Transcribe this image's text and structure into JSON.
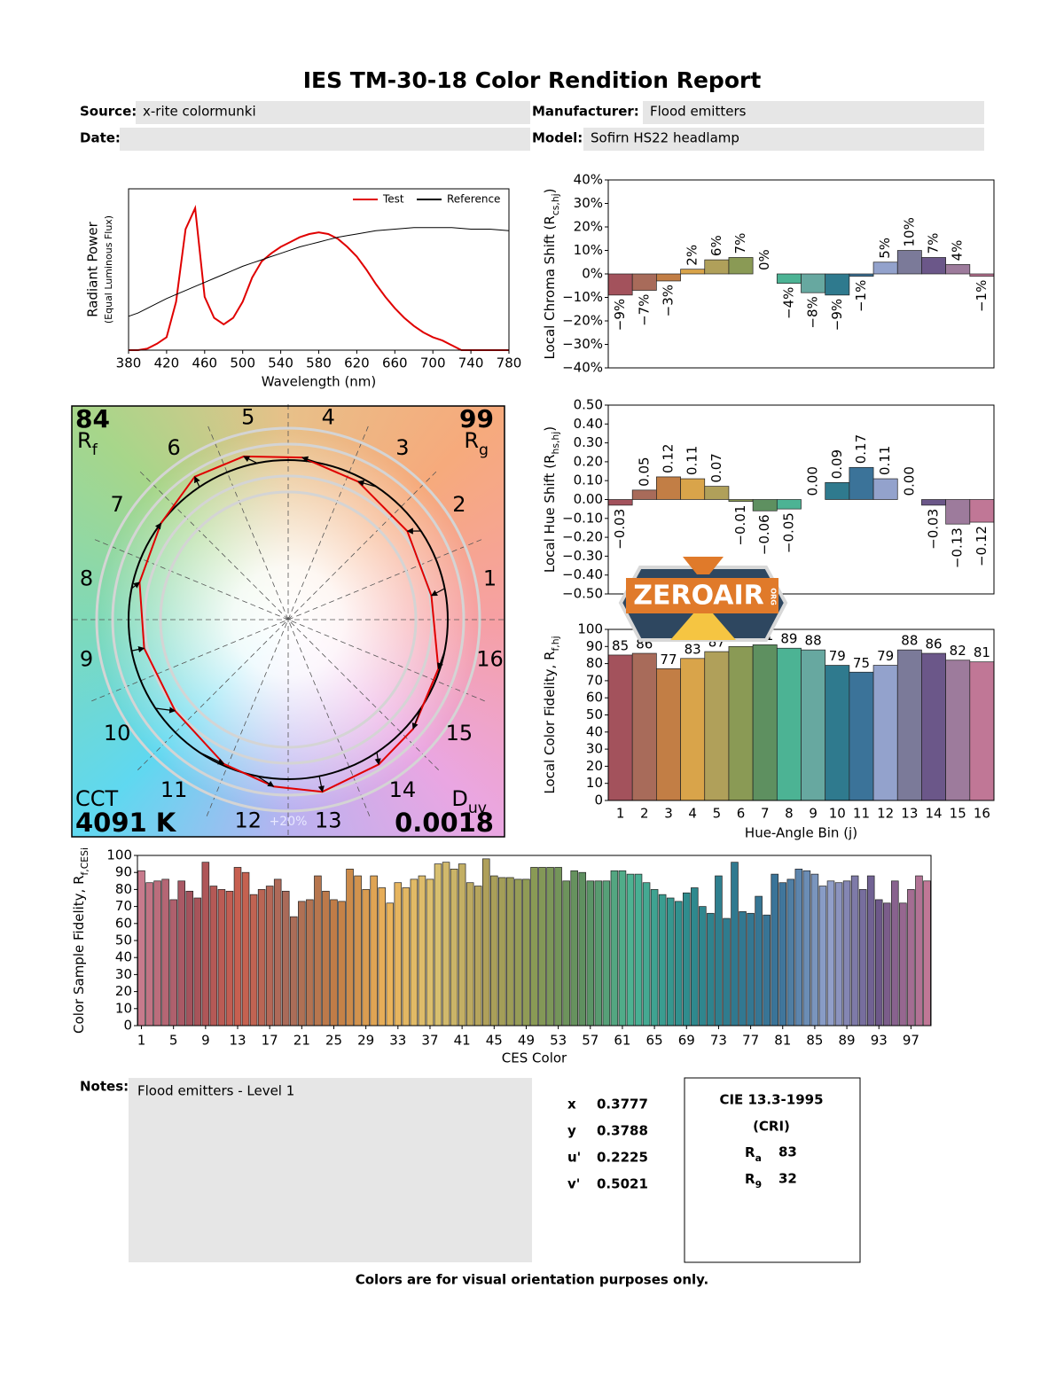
{
  "header": {
    "title": "IES TM-30-18 Color Rendition Report",
    "fields": [
      {
        "label": "Source:",
        "value": "x-rite colormunki"
      },
      {
        "label": "Manufacturer:",
        "value": "Flood emitters"
      },
      {
        "label": "Date:"
      },
      {
        "label": "Model:",
        "value": "Sofirn HS22 headlamp"
      }
    ]
  },
  "chart_data": [
    {
      "type": "line",
      "xlabel": "Wavelength (nm)",
      "ylabel": "Radiant Power",
      "ysublabel": "(Equal Luminous Flux)",
      "x": [
        380,
        390,
        400,
        410,
        420,
        430,
        440,
        450,
        460,
        470,
        480,
        490,
        500,
        510,
        520,
        530,
        540,
        550,
        560,
        570,
        580,
        590,
        600,
        610,
        620,
        630,
        640,
        650,
        660,
        670,
        680,
        690,
        700,
        710,
        720,
        730,
        740,
        750,
        760,
        770,
        780
      ],
      "series": [
        {
          "name": "Test",
          "color": "#e00000",
          "values": [
            0,
            0,
            0.01,
            0.04,
            0.08,
            0.3,
            0.75,
            0.88,
            0.33,
            0.2,
            0.16,
            0.2,
            0.3,
            0.45,
            0.55,
            0.6,
            0.64,
            0.67,
            0.7,
            0.72,
            0.73,
            0.72,
            0.69,
            0.64,
            0.58,
            0.5,
            0.41,
            0.33,
            0.26,
            0.2,
            0.15,
            0.11,
            0.08,
            0.06,
            0.03,
            0,
            0,
            0,
            0,
            0,
            0
          ]
        },
        {
          "name": "Reference",
          "color": "#000000",
          "values": [
            0.21,
            0.23,
            0.26,
            0.29,
            0.32,
            0.345,
            0.37,
            0.395,
            0.42,
            0.445,
            0.47,
            0.495,
            0.52,
            0.54,
            0.56,
            0.58,
            0.6,
            0.62,
            0.64,
            0.655,
            0.67,
            0.685,
            0.7,
            0.71,
            0.72,
            0.73,
            0.74,
            0.745,
            0.75,
            0.755,
            0.76,
            0.76,
            0.76,
            0.76,
            0.76,
            0.755,
            0.75,
            0.75,
            0.75,
            0.745,
            0.74
          ]
        }
      ],
      "xlim": [
        380,
        780
      ],
      "xticks": [
        380,
        420,
        460,
        500,
        540,
        580,
        620,
        660,
        700,
        740,
        780
      ],
      "ylim": [
        0,
        1
      ],
      "legend": "upper right"
    },
    {
      "type": "bar",
      "ylabel": {
        "text": "Local Chroma Shift (R",
        "sub": "cs,hj",
        "end": ")"
      },
      "values": [
        -9,
        -7,
        -3,
        2,
        6,
        7,
        0,
        -4,
        -8,
        -9,
        -1,
        5,
        10,
        7,
        4,
        -1
      ],
      "value_labels": [
        "−9%",
        "−7%",
        "−3%",
        "2%",
        "6%",
        "7%",
        "0%",
        "−4%",
        "−8%",
        "−9%",
        "−1%",
        "5%",
        "10%",
        "7%",
        "4%",
        "−1%"
      ],
      "colors": [
        "#a3525c",
        "#a86b5a",
        "#c27e45",
        "#d9a44a",
        "#b0a05a",
        "#8a9a55",
        "#5e9060",
        "#4cb394",
        "#67a8a0",
        "#2f7a8e",
        "#3b7399",
        "#93a2cc",
        "#7b7a99",
        "#6b5789",
        "#9d7b9c",
        "#c07796"
      ],
      "ylim": [
        -40,
        40
      ],
      "yticks": [
        {
          "value": -40,
          "label": "−40%"
        },
        {
          "value": -30,
          "label": "−30%"
        },
        {
          "value": -20,
          "label": "−20%"
        },
        {
          "value": -10,
          "label": "−10%"
        },
        {
          "value": 0,
          "label": "0%"
        },
        {
          "value": 10,
          "label": "10%"
        },
        {
          "value": 20,
          "label": "20%"
        },
        {
          "value": 30,
          "label": "30%"
        },
        {
          "value": 40,
          "label": "40%"
        }
      ]
    },
    {
      "type": "bar",
      "ylabel": {
        "text": "Local Hue Shift (R",
        "sub": "hs,hj",
        "end": ")"
      },
      "values": [
        -0.03,
        0.05,
        0.12,
        0.11,
        0.07,
        -0.01,
        -0.06,
        -0.05,
        0,
        0.09,
        0.17,
        0.11,
        0,
        -0.03,
        -0.13,
        -0.12
      ],
      "value_labels": [
        "−0.03",
        "0.05",
        "0.12",
        "0.11",
        "0.07",
        "−0.01",
        "−0.06",
        "−0.05",
        "0.00",
        "0.09",
        "0.17",
        "0.11",
        "0.00",
        "−0.03",
        "−0.13",
        "−0.12"
      ],
      "colors": [
        "#a3525c",
        "#a86b5a",
        "#c27e45",
        "#d9a44a",
        "#b0a05a",
        "#8a9a55",
        "#5e9060",
        "#4cb394",
        "#67a8a0",
        "#2f7a8e",
        "#3b7399",
        "#93a2cc",
        "#7b7a99",
        "#6b5789",
        "#9d7b9c",
        "#c07796"
      ],
      "ylim": [
        -0.5,
        0.5
      ],
      "yticks": [
        {
          "value": -0.5,
          "label": "−0.50"
        },
        {
          "value": -0.4,
          "label": "−0.40"
        },
        {
          "value": -0.3,
          "label": "−0.30"
        },
        {
          "value": -0.2,
          "label": "−0.20"
        },
        {
          "value": -0.1,
          "label": "−0.10"
        },
        {
          "value": 0,
          "label": "0.00"
        },
        {
          "value": 0.1,
          "label": "0.10"
        },
        {
          "value": 0.2,
          "label": "0.20"
        },
        {
          "value": 0.3,
          "label": "0.30"
        },
        {
          "value": 0.4,
          "label": "0.40"
        },
        {
          "value": 0.5,
          "label": "0.50"
        }
      ]
    },
    {
      "type": "bar",
      "ylabel": {
        "text": "Local Color Fidelity, R",
        "sub": "f,hj"
      },
      "xlabel": "Hue-Angle Bin (j)",
      "categories": [
        1,
        2,
        3,
        4,
        5,
        6,
        7,
        8,
        9,
        10,
        11,
        12,
        13,
        14,
        15,
        16
      ],
      "values": [
        85,
        86,
        77,
        83,
        87,
        90,
        91,
        89,
        88,
        79,
        75,
        79,
        88,
        86,
        82,
        81
      ],
      "colors": [
        "#a3525c",
        "#a86b5a",
        "#c27e45",
        "#d9a44a",
        "#b0a05a",
        "#8a9a55",
        "#5e9060",
        "#4cb394",
        "#67a8a0",
        "#2f7a8e",
        "#3b7399",
        "#93a2cc",
        "#7b7a99",
        "#6b5789",
        "#9d7b9c",
        "#c07796"
      ],
      "ylim": [
        0,
        100
      ],
      "yticks": [
        0,
        10,
        20,
        30,
        40,
        50,
        60,
        70,
        80,
        90,
        100
      ]
    },
    {
      "type": "vector",
      "rf": 84,
      "rf_label": {
        "text": "R",
        "sub": "f"
      },
      "rg": 99,
      "rg_label": {
        "text": "R",
        "sub": "g"
      },
      "cct_label": "CCT",
      "cct": {
        "value": 4091,
        "label": "4091 K"
      },
      "duv_label": {
        "text": "D",
        "sub": "uv"
      },
      "duv": 0.0018,
      "bins": [
        1,
        2,
        3,
        4,
        5,
        6,
        7,
        8,
        9,
        10,
        11,
        12,
        13,
        14,
        15,
        16
      ],
      "scale_label": "+20%",
      "test_color": "#e00000",
      "reference_color": "#000000"
    },
    {
      "type": "bar",
      "ylabel": {
        "text": "Color Sample Fidelity, R",
        "sub": "f,CESi"
      },
      "xlabel": "CES Color",
      "x": [
        1,
        2,
        3,
        4,
        5,
        6,
        7,
        8,
        9,
        10,
        11,
        12,
        13,
        14,
        15,
        16,
        17,
        18,
        19,
        20,
        21,
        22,
        23,
        24,
        25,
        26,
        27,
        28,
        29,
        30,
        31,
        32,
        33,
        34,
        35,
        36,
        37,
        38,
        39,
        40,
        41,
        42,
        43,
        44,
        45,
        46,
        47,
        48,
        49,
        50,
        51,
        52,
        53,
        54,
        55,
        56,
        57,
        58,
        59,
        60,
        61,
        62,
        63,
        64,
        65,
        66,
        67,
        68,
        69,
        70,
        71,
        72,
        73,
        74,
        75,
        76,
        77,
        78,
        79,
        80,
        81,
        82,
        83,
        84,
        85,
        86,
        87,
        88,
        89,
        90,
        91,
        92,
        93,
        94,
        95,
        96,
        97,
        98,
        99
      ],
      "values": [
        91,
        84,
        85,
        86,
        74,
        85,
        79,
        75,
        96,
        82,
        80,
        79,
        93,
        90,
        77,
        80,
        82,
        86,
        79,
        64,
        73,
        74,
        88,
        79,
        74,
        73,
        92,
        88,
        80,
        88,
        81,
        72,
        84,
        81,
        86,
        88,
        86,
        95,
        96,
        92,
        95,
        84,
        82,
        98,
        88,
        87,
        87,
        86,
        86,
        93,
        93,
        93,
        93,
        85,
        91,
        90,
        85,
        85,
        85,
        91,
        91,
        89,
        89,
        84,
        80,
        77,
        75,
        73,
        78,
        81,
        70,
        66,
        88,
        63,
        96,
        67,
        66,
        76,
        65,
        89,
        84,
        86,
        92,
        91,
        89,
        82,
        85,
        84,
        85,
        88,
        80,
        88,
        74,
        72,
        85,
        72,
        80,
        88,
        85
      ],
      "colors": [
        "#c77a8c",
        "#a3525c",
        "#c9604f",
        "#a86b5a",
        "#c27e45",
        "#eab25a",
        "#d9c070",
        "#b0a05a",
        "#8a9a55",
        "#5e9060",
        "#4cb394",
        "#2f8f8e",
        "#2f7a8e",
        "#3b7399",
        "#93a2cc",
        "#6b5789",
        "#c07796"
      ],
      "xlim": [
        0.5,
        99.5
      ],
      "xticks": [
        1,
        5,
        9,
        13,
        17,
        21,
        25,
        29,
        33,
        37,
        41,
        45,
        49,
        53,
        57,
        61,
        65,
        69,
        73,
        77,
        81,
        85,
        89,
        93,
        97
      ],
      "ylim": [
        0,
        100
      ],
      "yticks": [
        0,
        10,
        20,
        30,
        40,
        50,
        60,
        70,
        80,
        90,
        100
      ]
    }
  ],
  "logo": {
    "text": "ZEROAIR",
    "suffix": "ORG"
  },
  "notes": {
    "label": "Notes:",
    "text": "Flood emitters - Level 1"
  },
  "chromaticity": [
    {
      "label": "x",
      "value": 0.3777
    },
    {
      "label": "y",
      "value": 0.3788
    },
    {
      "label": "u'",
      "value": 0.2225
    },
    {
      "label": "v'",
      "value": 0.5021
    }
  ],
  "cri": {
    "title": "CIE 13.3-1995",
    "subtitle": "(CRI)",
    "items": [
      {
        "text": "R",
        "sub": "a",
        "value": 83
      },
      {
        "text": "R",
        "sub": "9",
        "value": 32
      }
    ]
  },
  "footer": "Colors are for visual orientation purposes only."
}
